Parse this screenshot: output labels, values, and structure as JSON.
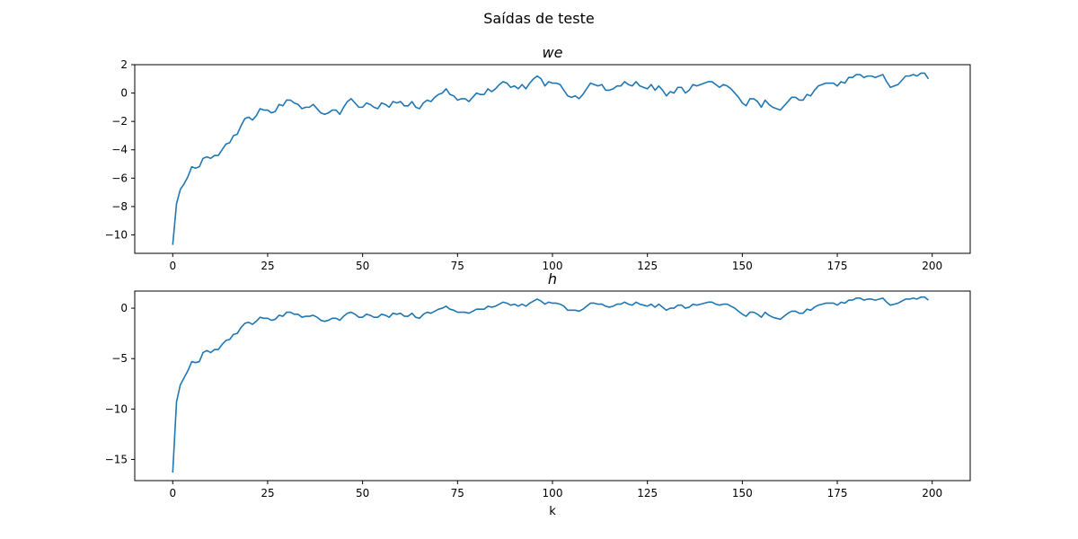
{
  "figure": {
    "suptitle": "Saídas de teste"
  },
  "chart_data": [
    {
      "type": "line",
      "title": "we",
      "xlabel": "",
      "ylabel": "",
      "xlim": [
        -10,
        210
      ],
      "ylim": [
        -11.3,
        2.0
      ],
      "xticks": [
        0,
        25,
        50,
        75,
        100,
        125,
        150,
        175,
        200
      ],
      "yticks": [
        -10,
        -8,
        -6,
        -4,
        -2,
        0,
        2
      ],
      "grid": false,
      "color": "#1f77b4",
      "series": [
        {
          "x_start": 0,
          "x_step": 1,
          "values": [
            -10.7,
            -7.8,
            -6.8,
            -6.4,
            -5.9,
            -5.2,
            -5.3,
            -5.2,
            -4.6,
            -4.5,
            -4.6,
            -4.4,
            -4.4,
            -4.0,
            -3.6,
            -3.5,
            -3.0,
            -2.9,
            -2.3,
            -1.8,
            -1.7,
            -1.9,
            -1.6,
            -1.1,
            -1.2,
            -1.2,
            -1.4,
            -1.3,
            -0.8,
            -0.9,
            -0.5,
            -0.5,
            -0.7,
            -0.8,
            -1.1,
            -1.0,
            -1.0,
            -0.8,
            -1.1,
            -1.4,
            -1.5,
            -1.4,
            -1.2,
            -1.2,
            -1.5,
            -1.0,
            -0.6,
            -0.4,
            -0.7,
            -1.0,
            -1.0,
            -0.7,
            -0.8,
            -1.0,
            -1.1,
            -0.7,
            -0.8,
            -1.0,
            -0.6,
            -0.7,
            -0.6,
            -0.9,
            -0.9,
            -0.6,
            -1.0,
            -1.1,
            -0.7,
            -0.5,
            -0.6,
            -0.3,
            -0.1,
            0.0,
            0.3,
            -0.1,
            -0.2,
            -0.5,
            -0.4,
            -0.4,
            -0.6,
            -0.3,
            0.0,
            -0.1,
            -0.1,
            0.3,
            0.1,
            0.3,
            0.6,
            0.8,
            0.7,
            0.4,
            0.5,
            0.3,
            0.6,
            0.3,
            0.7,
            1.0,
            1.2,
            1.0,
            0.5,
            0.8,
            0.7,
            0.7,
            0.6,
            0.2,
            -0.2,
            -0.3,
            -0.2,
            -0.4,
            -0.1,
            0.3,
            0.7,
            0.6,
            0.5,
            0.6,
            0.2,
            0.2,
            0.3,
            0.5,
            0.5,
            0.8,
            0.6,
            0.5,
            0.8,
            0.5,
            0.4,
            0.3,
            0.6,
            0.2,
            0.5,
            0.2,
            -0.2,
            0.1,
            0.0,
            0.4,
            0.4,
            0.0,
            0.2,
            0.6,
            0.5,
            0.6,
            0.7,
            0.8,
            0.8,
            0.6,
            0.4,
            0.6,
            0.5,
            0.3,
            0.0,
            -0.3,
            -0.7,
            -0.9,
            -0.4,
            -0.4,
            -0.6,
            -1.0,
            -0.5,
            -0.8,
            -1.0,
            -1.1,
            -1.2,
            -0.9,
            -0.6,
            -0.3,
            -0.3,
            -0.5,
            -0.5,
            -0.1,
            -0.2,
            0.2,
            0.5,
            0.6,
            0.7,
            0.7,
            0.7,
            0.5,
            0.8,
            0.7,
            1.1,
            1.1,
            1.3,
            1.3,
            1.1,
            1.2,
            1.2,
            1.1,
            1.2,
            1.3,
            0.8,
            0.4,
            0.5,
            0.6,
            0.9,
            1.2,
            1.2,
            1.3,
            1.2,
            1.4,
            1.4,
            1.0
          ]
        }
      ]
    },
    {
      "type": "line",
      "title": "h",
      "xlabel": "k",
      "ylabel": "",
      "xlim": [
        -10,
        210
      ],
      "ylim": [
        -17.1,
        1.7
      ],
      "xticks": [
        0,
        25,
        50,
        75,
        100,
        125,
        150,
        175,
        200
      ],
      "yticks": [
        -15,
        -10,
        -5,
        0
      ],
      "grid": false,
      "color": "#1f77b4",
      "series": [
        {
          "x_start": 0,
          "x_step": 1,
          "values": [
            -16.3,
            -9.3,
            -7.6,
            -6.9,
            -6.2,
            -5.3,
            -5.4,
            -5.3,
            -4.4,
            -4.2,
            -4.4,
            -4.1,
            -4.1,
            -3.6,
            -3.2,
            -3.1,
            -2.6,
            -2.5,
            -1.9,
            -1.5,
            -1.4,
            -1.6,
            -1.3,
            -0.9,
            -1.0,
            -1.0,
            -1.2,
            -1.1,
            -0.7,
            -0.8,
            -0.4,
            -0.4,
            -0.6,
            -0.6,
            -0.9,
            -0.8,
            -0.8,
            -0.7,
            -0.9,
            -1.2,
            -1.3,
            -1.2,
            -1.0,
            -1.0,
            -1.2,
            -0.8,
            -0.5,
            -0.4,
            -0.6,
            -0.9,
            -0.9,
            -0.6,
            -0.7,
            -0.9,
            -0.9,
            -0.6,
            -0.7,
            -0.9,
            -0.5,
            -0.6,
            -0.5,
            -0.8,
            -0.8,
            -0.5,
            -0.9,
            -1.0,
            -0.6,
            -0.4,
            -0.5,
            -0.3,
            -0.1,
            0.0,
            0.2,
            -0.1,
            -0.2,
            -0.4,
            -0.4,
            -0.4,
            -0.5,
            -0.3,
            -0.1,
            -0.1,
            -0.1,
            0.2,
            0.1,
            0.2,
            0.4,
            0.6,
            0.5,
            0.3,
            0.4,
            0.2,
            0.4,
            0.2,
            0.5,
            0.7,
            0.9,
            0.7,
            0.4,
            0.6,
            0.5,
            0.5,
            0.4,
            0.2,
            -0.2,
            -0.2,
            -0.2,
            -0.3,
            -0.1,
            0.2,
            0.5,
            0.5,
            0.4,
            0.4,
            0.2,
            0.1,
            0.2,
            0.4,
            0.4,
            0.6,
            0.4,
            0.3,
            0.6,
            0.4,
            0.3,
            0.2,
            0.4,
            0.1,
            0.4,
            0.1,
            -0.2,
            0.0,
            0.0,
            0.3,
            0.3,
            0.0,
            0.1,
            0.4,
            0.3,
            0.4,
            0.5,
            0.6,
            0.6,
            0.4,
            0.3,
            0.4,
            0.4,
            0.2,
            0.0,
            -0.3,
            -0.6,
            -0.8,
            -0.4,
            -0.4,
            -0.6,
            -0.9,
            -0.4,
            -0.7,
            -0.9,
            -1.0,
            -1.1,
            -0.8,
            -0.5,
            -0.3,
            -0.3,
            -0.5,
            -0.5,
            -0.1,
            -0.2,
            0.1,
            0.3,
            0.4,
            0.5,
            0.5,
            0.5,
            0.3,
            0.6,
            0.5,
            0.8,
            0.8,
            1.0,
            1.0,
            0.8,
            0.9,
            0.9,
            0.8,
            0.9,
            1.0,
            0.6,
            0.3,
            0.4,
            0.5,
            0.7,
            0.9,
            0.9,
            1.0,
            0.9,
            1.1,
            1.1,
            0.8
          ]
        }
      ]
    }
  ]
}
